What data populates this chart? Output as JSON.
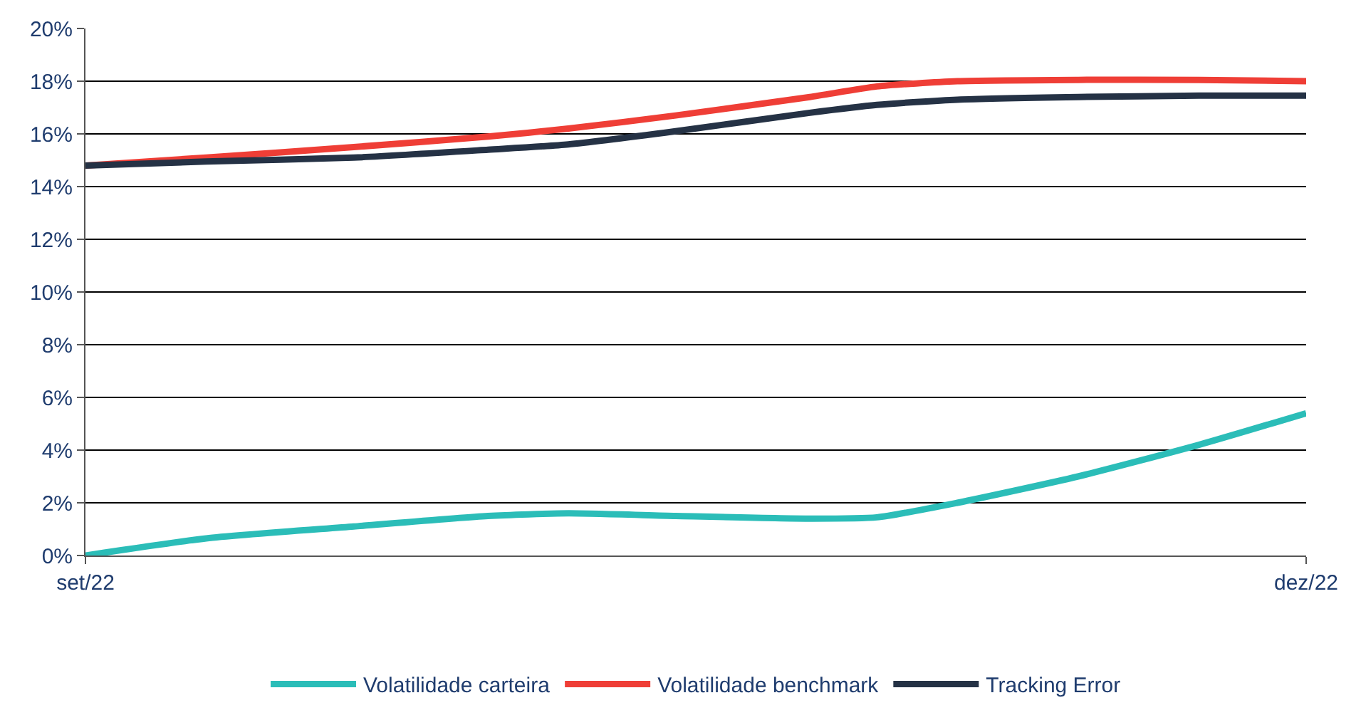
{
  "chart_data": {
    "type": "line",
    "x": [
      "2022-09-01",
      "2022-09-10",
      "2022-09-21",
      "2022-10-01",
      "2022-10-07",
      "2022-10-15",
      "2022-10-25",
      "2022-10-30",
      "2022-11-05",
      "2022-11-14",
      "2022-11-23",
      "2022-12-01"
    ],
    "series": [
      {
        "name": "Volatilidade carteira",
        "color": "#2bbdb8",
        "values": [
          0,
          0.65,
          1.1,
          1.5,
          1.6,
          1.5,
          1.4,
          1.45,
          2.0,
          3.0,
          4.2,
          5.4
        ]
      },
      {
        "name": "Volatilidade benchmark",
        "color": "#ef3e36",
        "values": [
          14.8,
          15.1,
          15.5,
          15.9,
          16.2,
          16.7,
          17.4,
          17.8,
          18.0,
          18.05,
          18.05,
          18.0
        ]
      },
      {
        "name": "Tracking Error",
        "color": "#253245",
        "values": [
          14.8,
          14.95,
          15.1,
          15.4,
          15.6,
          16.1,
          16.8,
          17.1,
          17.3,
          17.4,
          17.45,
          17.45
        ]
      }
    ],
    "xlim": [
      "2022-09-01",
      "2022-12-01"
    ],
    "xticks": [
      {
        "value": "2022-09-01",
        "label": "set/22"
      },
      {
        "value": "2022-12-01",
        "label": "dez/22"
      }
    ],
    "ylim": [
      0,
      20
    ],
    "yticks": [
      {
        "value": 0,
        "label": "0%"
      },
      {
        "value": 2,
        "label": "2%"
      },
      {
        "value": 4,
        "label": "4%"
      },
      {
        "value": 6,
        "label": "6%"
      },
      {
        "value": 8,
        "label": "8%"
      },
      {
        "value": 10,
        "label": "10%"
      },
      {
        "value": 12,
        "label": "12%"
      },
      {
        "value": 14,
        "label": "14%"
      },
      {
        "value": 16,
        "label": "16%"
      },
      {
        "value": 18,
        "label": "18%"
      },
      {
        "value": 20,
        "label": "20%"
      }
    ],
    "grid": "y",
    "legend": "bottom",
    "marker": "none",
    "line_style": "solid"
  }
}
